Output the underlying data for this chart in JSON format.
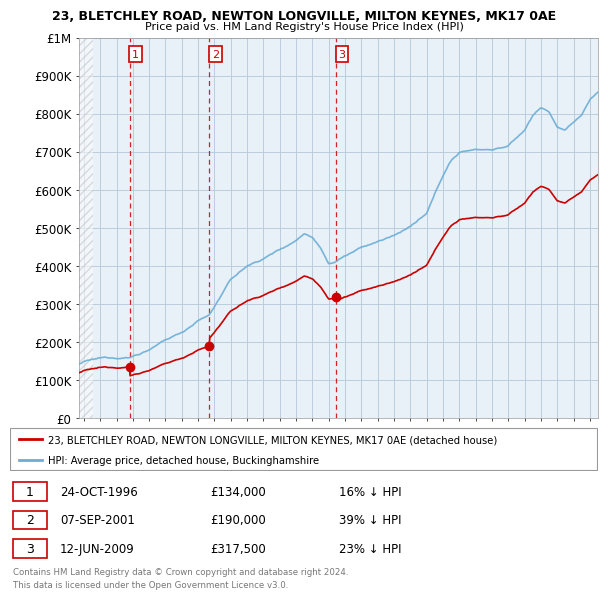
{
  "title1": "23, BLETCHLEY ROAD, NEWTON LONGVILLE, MILTON KEYNES, MK17 0AE",
  "title2": "Price paid vs. HM Land Registry's House Price Index (HPI)",
  "xlim_start": 1993.7,
  "xlim_end": 2025.5,
  "ylim_min": 0,
  "ylim_max": 1000000,
  "yticks": [
    0,
    100000,
    200000,
    300000,
    400000,
    500000,
    600000,
    700000,
    800000,
    900000,
    1000000
  ],
  "ytick_labels": [
    "£0",
    "£100K",
    "£200K",
    "£300K",
    "£400K",
    "£500K",
    "£600K",
    "£700K",
    "£800K",
    "£900K",
    "£1M"
  ],
  "hpi_color": "#6baed6",
  "price_color": "#cc0000",
  "vline_color": "#cc0000",
  "hatch_end_year": 1994.5,
  "bg_blue": "#ddeeff",
  "transactions": [
    {
      "num": 1,
      "year": 1996.81,
      "price": 134000,
      "label": "1"
    },
    {
      "num": 2,
      "year": 2001.68,
      "price": 190000,
      "label": "2"
    },
    {
      "num": 3,
      "year": 2009.45,
      "price": 317500,
      "label": "3"
    }
  ],
  "legend_label_red": "23, BLETCHLEY ROAD, NEWTON LONGVILLE, MILTON KEYNES, MK17 0AE (detached house)",
  "legend_label_blue": "HPI: Average price, detached house, Buckinghamshire",
  "table_rows": [
    {
      "num": "1",
      "date": "24-OCT-1996",
      "price": "£134,000",
      "hpi": "16% ↓ HPI"
    },
    {
      "num": "2",
      "date": "07-SEP-2001",
      "price": "£190,000",
      "hpi": "39% ↓ HPI"
    },
    {
      "num": "3",
      "date": "12-JUN-2009",
      "price": "£317,500",
      "hpi": "23% ↓ HPI"
    }
  ],
  "footnote": "Contains HM Land Registry data © Crown copyright and database right 2024.\nThis data is licensed under the Open Government Licence v3.0.",
  "grid_color": "#bbccdd"
}
